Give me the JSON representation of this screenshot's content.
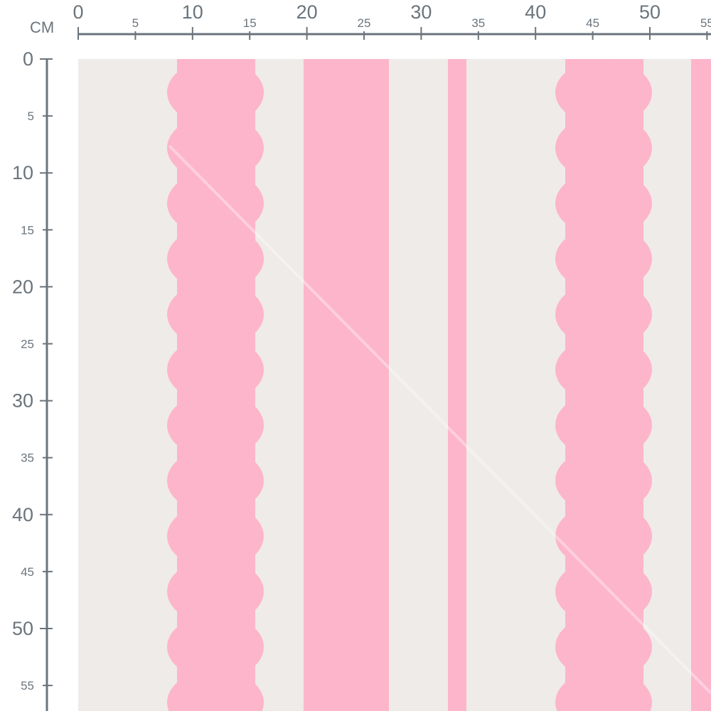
{
  "ruler": {
    "unit_label": "CM",
    "horizontal_ticks": [
      "0",
      "5",
      "10",
      "15",
      "20",
      "25",
      "30",
      "35",
      "40",
      "45",
      "50",
      "55"
    ],
    "vertical_ticks": [
      "0",
      "5",
      "10",
      "15",
      "20",
      "25",
      "30",
      "35",
      "40",
      "45",
      "50",
      "55"
    ],
    "color": "#6b747c"
  },
  "fabric": {
    "background_color": "#efebe8",
    "stripe_color": "#fdb5cc",
    "pattern": "pink scalloped and straight vertical stripes"
  }
}
